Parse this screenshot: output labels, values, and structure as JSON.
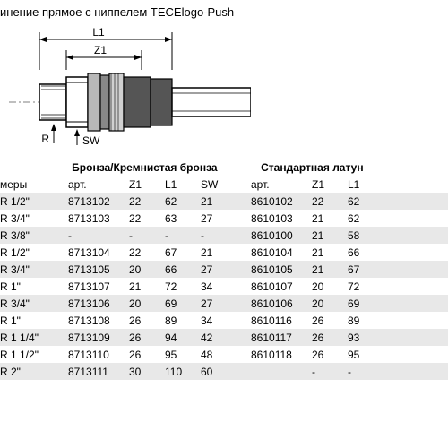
{
  "title": "инение прямое с ниппелем TECElogo-Push",
  "diagram": {
    "labels": {
      "L1": "L1",
      "Z1": "Z1",
      "R": "R",
      "SW": "SW"
    }
  },
  "groups": {
    "bronze": "Бронза/Кремнистая бронза",
    "brass": "Стандартная латун"
  },
  "columns": {
    "size": "меры",
    "art": "арт.",
    "z1": "Z1",
    "l1": "L1",
    "sw": "SW"
  },
  "rows": [
    {
      "size": "R 1/2\"",
      "b_art": "8713102",
      "b_z1": "22",
      "b_l1": "62",
      "b_sw": "21",
      "s_art": "8610102",
      "s_z1": "22",
      "s_l1": "62"
    },
    {
      "size": "R 3/4\"",
      "b_art": "8713103",
      "b_z1": "22",
      "b_l1": "63",
      "b_sw": "27",
      "s_art": "8610103",
      "s_z1": "21",
      "s_l1": "62"
    },
    {
      "size": "R 3/8\"",
      "b_art": "-",
      "b_z1": "-",
      "b_l1": "-",
      "b_sw": "-",
      "s_art": "8610100",
      "s_z1": "21",
      "s_l1": "58"
    },
    {
      "size": "R 1/2\"",
      "b_art": "8713104",
      "b_z1": "22",
      "b_l1": "67",
      "b_sw": "21",
      "s_art": "8610104",
      "s_z1": "21",
      "s_l1": "66"
    },
    {
      "size": "R 3/4\"",
      "b_art": "8713105",
      "b_z1": "20",
      "b_l1": "66",
      "b_sw": "27",
      "s_art": "8610105",
      "s_z1": "21",
      "s_l1": "67"
    },
    {
      "size": "R 1\"",
      "b_art": "8713107",
      "b_z1": "21",
      "b_l1": "72",
      "b_sw": "34",
      "s_art": "8610107",
      "s_z1": "20",
      "s_l1": "72"
    },
    {
      "size": "R 3/4\"",
      "b_art": "8713106",
      "b_z1": "20",
      "b_l1": "69",
      "b_sw": "27",
      "s_art": "8610106",
      "s_z1": "20",
      "s_l1": "69"
    },
    {
      "size": "R 1\"",
      "b_art": "8713108",
      "b_z1": "26",
      "b_l1": "89",
      "b_sw": "34",
      "s_art": "8610116",
      "s_z1": "26",
      "s_l1": "89"
    },
    {
      "size": "R 1 1/4\"",
      "b_art": "8713109",
      "b_z1": "26",
      "b_l1": "94",
      "b_sw": "42",
      "s_art": "8610117",
      "s_z1": "26",
      "s_l1": "93"
    },
    {
      "size": "R 1 1/2\"",
      "b_art": "8713110",
      "b_z1": "26",
      "b_l1": "95",
      "b_sw": "48",
      "s_art": "8610118",
      "s_z1": "26",
      "s_l1": "95"
    },
    {
      "size": "R 2\"",
      "b_art": "8713111",
      "b_z1": "30",
      "b_l1": "110",
      "b_sw": "60",
      "s_art": "",
      "s_z1": "-",
      "s_l1": "-"
    }
  ],
  "colors": {
    "zebra": "#e8e8e8",
    "text": "#000000",
    "bg": "#ffffff"
  }
}
